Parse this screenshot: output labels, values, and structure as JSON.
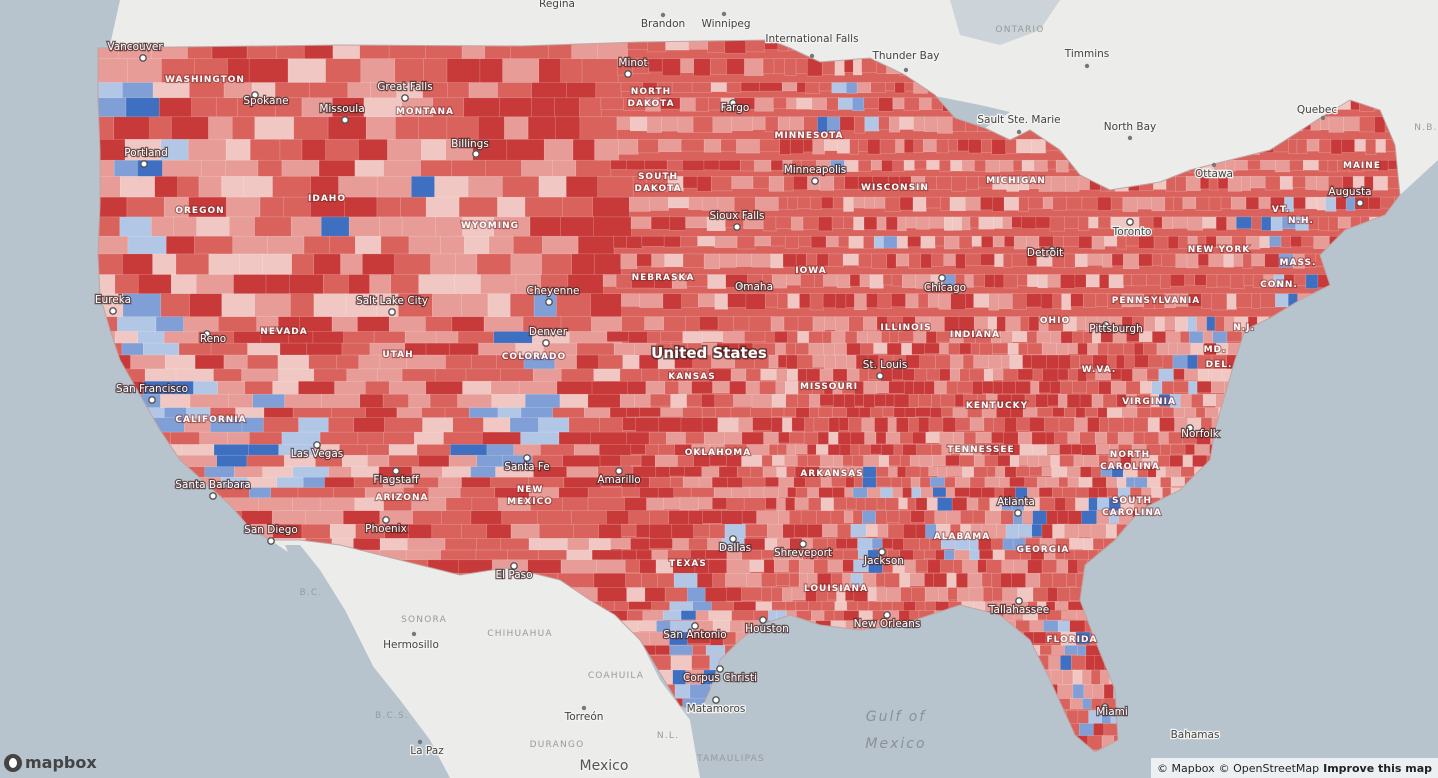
{
  "map": {
    "attribution": {
      "mapbox": "© Mapbox",
      "osm": "© OpenStreetMap",
      "improve": "Improve this map"
    },
    "logo_text": "mapbox",
    "colors": {
      "water": "#a9b7c3",
      "land_outside": "#ececea",
      "strong_red": "#c83a3a",
      "red": "#d9625d",
      "light_red": "#e79c97",
      "pale_red": "#f0c7c2",
      "light_blue": "#b2c6e6",
      "blue": "#7f9fd6",
      "strong_blue": "#3f6fc0"
    },
    "legend_semantics": {
      "red": "Republican-leaning county",
      "blue": "Democratic-leaning county"
    },
    "country_label": "United States",
    "states": [
      "WASHINGTON",
      "MONTANA",
      "NORTH DAKOTA",
      "MINNESOTA",
      "OREGON",
      "IDAHO",
      "SOUTH DAKOTA",
      "WISCONSIN",
      "MICHIGAN",
      "WYOMING",
      "IOWA",
      "NEW YORK",
      "NEBRASKA",
      "PENNSYLVANIA",
      "NEVADA",
      "ILLINOIS",
      "INDIANA",
      "OHIO",
      "UTAH",
      "COLORADO",
      "KANSAS",
      "MISSOURI",
      "W.VA.",
      "CALIFORNIA",
      "KENTUCKY",
      "VIRGINIA",
      "TENNESSEE",
      "OKLAHOMA",
      "NORTH CAROLINA",
      "ARKANSAS",
      "ARIZONA",
      "NEW MEXICO",
      "SOUTH CAROLINA",
      "ALABAMA",
      "GEORGIA",
      "TEXAS",
      "LOUISIANA",
      "FLORIDA",
      "MAINE",
      "VT.",
      "N.H.",
      "MASS.",
      "CONN.",
      "N.J.",
      "MD.",
      "DEL."
    ],
    "cities": [
      "Vancouver",
      "Spokane",
      "Missoula",
      "Great Falls",
      "Minot",
      "Fargo",
      "Billings",
      "Portland",
      "Minneapolis",
      "Sioux Falls",
      "Detroit",
      "Chicago",
      "Omaha",
      "Cheyenne",
      "Salt Lake City",
      "Eureka",
      "Reno",
      "Denver",
      "United States",
      "Pittsburgh",
      "San Francisco",
      "St. Louis",
      "Las Vegas",
      "Santa Fe",
      "Flagstaff",
      "Amarillo",
      "Atlanta",
      "Santa Barbara",
      "Phoenix",
      "Dallas",
      "Shreveport",
      "Jackson",
      "San Diego",
      "El Paso",
      "Houston",
      "San Antonio",
      "New Orleans",
      "Tallahassee",
      "Corpus Christi",
      "Matamoros",
      "Miami",
      "Norfolk",
      "Augusta",
      "Toronto"
    ],
    "outside_places": [
      "Regina",
      "Brandon",
      "Winnipeg",
      "International Falls",
      "Thunder Bay",
      "Timmins",
      "Sault Ste. Marie",
      "North Bay",
      "Quebec",
      "Ottawa",
      "Hermosillo",
      "Torreón",
      "La Paz",
      "Bahamas",
      "Mexico"
    ],
    "outside_regions": [
      "ONTARIO",
      "B.C.",
      "SONORA",
      "CHIHUAHUA",
      "COAHUILA",
      "B.C.S.",
      "DURANGO",
      "N.L.",
      "TAMAULIPAS",
      "N.B."
    ],
    "water_labels": [
      "Gulf of",
      "Mexico"
    ]
  }
}
